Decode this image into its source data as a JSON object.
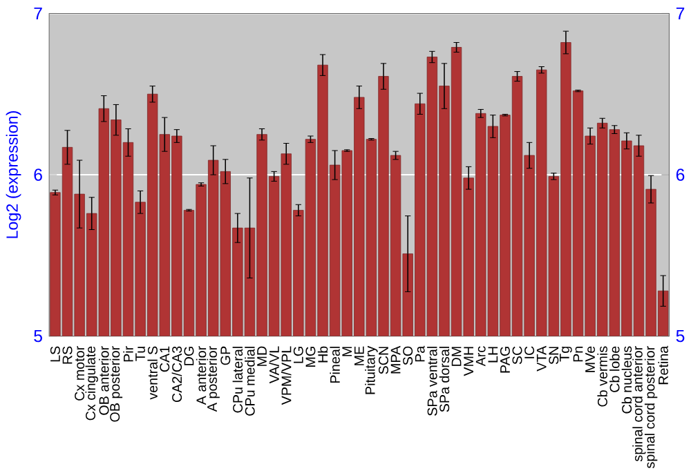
{
  "chart_data": {
    "type": "bar",
    "ylabel": "Log2 (expression)",
    "color": "#b03434",
    "grid": "y",
    "categories": [
      "LS",
      "RS",
      "Cx motor",
      "Cx cingulate",
      "OB anterior",
      "OB posterior",
      "Pir",
      "Tu",
      "ventral S",
      "CA1",
      "CA2/CA3",
      "DG",
      "A anterior",
      "A posterior",
      "GP",
      "CPu lateral",
      "CPu medial",
      "MD",
      "VA/VL",
      "VPM/VPL",
      "LG",
      "MG",
      "Hb",
      "Pineal",
      "M",
      "ME",
      "Pituitary",
      "SCN",
      "MPA",
      "SO",
      "Pa",
      "SPa ventral",
      "SPa dorsal",
      "DM",
      "VMH",
      "Arc",
      "LH",
      "PAG",
      "SC",
      "IC",
      "VTA",
      "SN",
      "Tg",
      "Pn",
      "MVe",
      "Cb vermis",
      "Cb lobe",
      "Cb nucleus",
      "spinal cord anterior",
      "spinal cord posterior",
      "Retina"
    ],
    "values": [
      5.89,
      6.17,
      5.88,
      5.76,
      6.41,
      6.34,
      6.2,
      5.83,
      6.5,
      6.25,
      6.24,
      5.78,
      5.94,
      6.09,
      6.02,
      5.67,
      5.67,
      6.25,
      5.99,
      6.13,
      5.78,
      6.22,
      6.68,
      6.06,
      6.15,
      6.48,
      6.22,
      6.61,
      6.12,
      5.51,
      6.44,
      6.73,
      6.55,
      6.79,
      5.98,
      6.38,
      6.3,
      6.37,
      6.61,
      6.12,
      6.65,
      5.99,
      6.82,
      6.52,
      6.24,
      6.32,
      6.28,
      6.21,
      6.18,
      5.91,
      5.28
    ],
    "errors": [
      0.015,
      0.105,
      0.21,
      0.1,
      0.08,
      0.095,
      0.085,
      0.07,
      0.05,
      0.105,
      0.04,
      0.005,
      0.01,
      0.09,
      0.075,
      0.09,
      0.31,
      0.035,
      0.03,
      0.065,
      0.035,
      0.02,
      0.065,
      0.09,
      0.005,
      0.07,
      0.005,
      0.08,
      0.025,
      0.235,
      0.065,
      0.035,
      0.14,
      0.03,
      0.07,
      0.025,
      0.07,
      0.005,
      0.03,
      0.08,
      0.02,
      0.02,
      0.07,
      0.005,
      0.05,
      0.03,
      0.025,
      0.05,
      0.065,
      0.085,
      0.095
    ],
    "ylim": [
      5,
      7
    ],
    "yticks": [
      5,
      6,
      7
    ],
    "y2lim": [
      5,
      7
    ],
    "y2ticks": [
      5,
      6,
      7
    ]
  }
}
